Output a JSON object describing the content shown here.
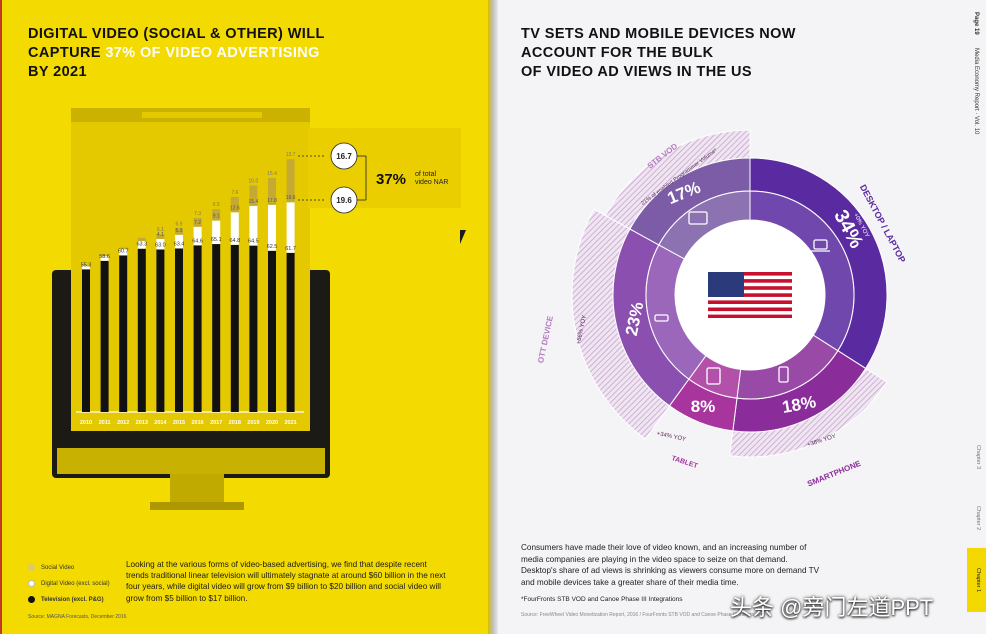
{
  "left_page": {
    "title_line1": "DIGITAL VIDEO (SOCIAL & OTHER) WILL",
    "title_line2a": "CAPTURE ",
    "title_line2b": "37% OF VIDEO ADVERTISING",
    "title_line3": "BY 2021",
    "nar_top": "16.7",
    "nar_bottom": "19.6",
    "nar_percent": "37%",
    "nar_label1": "of total",
    "nar_label2": "video NAR",
    "legend": [
      {
        "label": "Social Video",
        "color": "#ddc86a"
      },
      {
        "label": "Digital Video (excl. social)",
        "color": "#ffffff"
      },
      {
        "label": "Television (excl. P&G)",
        "color": "#111111"
      }
    ],
    "body_text": "Looking at the various forms of video-based advertising, we find that despite recent trends traditional linear television will ultimately stagnate at around $60 billion in the next four years, while digital video will grow from $9 billion to $20 billion and social video will grow from $5 billion to $17 billion.",
    "source": "Source: MAGNA Forecasts, December 2016"
  },
  "chart_data": {
    "type": "bar",
    "categories": [
      "2010",
      "2011",
      "2012",
      "2013",
      "2014",
      "2015",
      "2016",
      "2017",
      "2018",
      "2019",
      "2020",
      "2021"
    ],
    "series": [
      {
        "name": "Television (excl. P&G)",
        "values": [
          55.3,
          58.6,
          60.7,
          63.3,
          63.0,
          63.4,
          64.6,
          65.1,
          64.8,
          64.5,
          62.5,
          61.7
        ]
      },
      {
        "name": "Digital Video (excl. social)",
        "values": [
          1.4,
          1.8,
          2.4,
          3.0,
          4.1,
          5.3,
          7.2,
          9.1,
          12.6,
          15.4,
          17.8,
          19.6
        ]
      },
      {
        "name": "Social Video",
        "values": [
          0.2,
          0.4,
          0.7,
          1.2,
          1.8,
          2.5,
          3.4,
          4.5,
          6.0,
          7.9,
          10.4,
          16.7
        ]
      }
    ],
    "top_labels": [
      "",
      "",
      "",
      "",
      "6.1",
      "6.9",
      "7.3",
      "6.5",
      "7.6",
      "10.0",
      "15.4",
      "13.7"
    ],
    "ylim": [
      0,
      100
    ]
  },
  "right_page": {
    "title_line1": "TV SETS AND MOBILE DEVICES NOW",
    "title_line2": "ACCOUNT FOR THE BULK",
    "title_line3": "OF VIDEO AD VIEWS IN THE US",
    "segments": {
      "desktop": {
        "name": "DESKTOP / LAPTOP",
        "pct": "34%",
        "yoy": "+0% YOY",
        "color": "#5a2aa0"
      },
      "smartphone": {
        "name": "SMARTPHONE",
        "pct": "18%",
        "yoy": "+38% YOY",
        "color": "#8a2d9a"
      },
      "tablet": {
        "name": "TABLET",
        "pct": "8%",
        "yoy": "+34% YOY",
        "color": "#a8359e"
      },
      "ott": {
        "name": "OTT DEVICE",
        "pct": "23%",
        "yoy": "+66% YOY",
        "color": "#8b4fb0"
      },
      "stb": {
        "name": "STB VOD",
        "pct": "17%",
        "yoy": "21% of enabled Programmer Volume*",
        "color": "#7c5ca6"
      }
    },
    "body_text": "Consumers have made their love of video known, and an increasing number of media companies are playing in the video space to seize on that demand. Desktop's share of ad views is shrinking as viewers consume more on demand TV and mobile devices take a greater share of their media time.",
    "footnote": "*FourFronts STB VOD and Canoe Phase III Integrations",
    "source": "Source: FreeWheel Video Monetization Report, 2016 / FourFronts STB VOD and Canoe Phase III Integrations",
    "running_head": "Media Economy Report · Vol. 10",
    "page_no": "Page 19",
    "chapters": [
      "Chapter 3",
      "Chapter 2",
      "Chapter 1"
    ]
  },
  "watermark": "头条 @旁门左道PPT"
}
